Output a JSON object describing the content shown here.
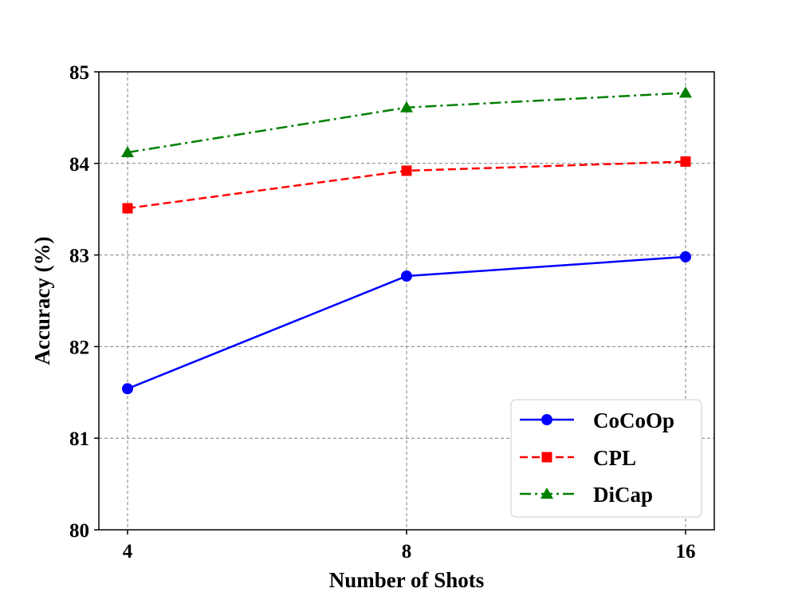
{
  "chart_data": {
    "type": "line",
    "title": "",
    "xlabel": "Number of Shots",
    "ylabel": "Accuracy (%)",
    "categories": [
      "4",
      "8",
      "16"
    ],
    "ylim": [
      80,
      85
    ],
    "yticks": [
      "80",
      "81",
      "82",
      "83",
      "84",
      "85"
    ],
    "grid": true,
    "legend_position": "bottom-right",
    "series": [
      {
        "name": "CoCoOp",
        "values": [
          81.54,
          82.77,
          82.98
        ],
        "color": "#0000ff",
        "marker": "circle",
        "line_style": "solid"
      },
      {
        "name": "CPL",
        "values": [
          83.51,
          83.92,
          84.02
        ],
        "color": "#ff0000",
        "marker": "square",
        "line_style": "dashed"
      },
      {
        "name": "DiCap",
        "values": [
          84.12,
          84.61,
          84.77
        ],
        "color": "#008000",
        "marker": "triangle",
        "line_style": "dashdot"
      }
    ]
  }
}
